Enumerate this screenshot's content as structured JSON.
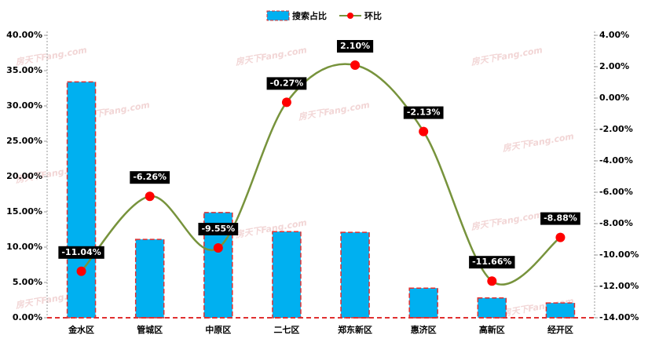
{
  "chart_data": {
    "type": "bar-line",
    "watermark": "房天下Fang.com",
    "categories": [
      "金水区",
      "管城区",
      "中原区",
      "二七区",
      "郑东新区",
      "惠济区",
      "高新区",
      "经开区"
    ],
    "series": [
      {
        "name": "搜索占比",
        "type": "bar",
        "color": "#00b0f0",
        "values": [
          33.4,
          11.1,
          14.9,
          12.2,
          12.1,
          4.2,
          2.8,
          2.1
        ]
      },
      {
        "name": "环比",
        "type": "line",
        "axis": "y2",
        "color": "#77933c",
        "marker_color": "#ff0000",
        "values": [
          -11.04,
          -6.26,
          -9.55,
          -0.27,
          2.1,
          -2.13,
          -11.66,
          -8.88
        ],
        "value_labels": [
          "-11.04%",
          "-6.26%",
          "-9.55%",
          "-0.27%",
          "2.10%",
          "-2.13%",
          "-11.66%",
          "-8.88%"
        ]
      }
    ],
    "ylim": [
      0,
      40
    ],
    "yticks": [
      {
        "value": 0,
        "label": "0.00%"
      },
      {
        "value": 5,
        "label": "5.00%"
      },
      {
        "value": 10,
        "label": "10.00%"
      },
      {
        "value": 15,
        "label": "15.00%"
      },
      {
        "value": 20,
        "label": "20.00%"
      },
      {
        "value": 25,
        "label": "25.00%"
      },
      {
        "value": 30,
        "label": "30.00%"
      },
      {
        "value": 35,
        "label": "35.00%"
      },
      {
        "value": 40,
        "label": "40.00%"
      }
    ],
    "y2lim": [
      -14,
      4
    ],
    "y2ticks": [
      {
        "value": -14,
        "label": "-14.00%"
      },
      {
        "value": -12,
        "label": "-12.00%"
      },
      {
        "value": -10,
        "label": "-10.00%"
      },
      {
        "value": -8,
        "label": "-8.00%"
      },
      {
        "value": -6,
        "label": "-6.00%"
      },
      {
        "value": -4,
        "label": "-4.00%"
      },
      {
        "value": -2,
        "label": "-2.00%"
      },
      {
        "value": 0,
        "label": "0.00%"
      },
      {
        "value": 2,
        "label": "2.00%"
      },
      {
        "value": 4,
        "label": "4.00%"
      }
    ],
    "grid": false
  }
}
